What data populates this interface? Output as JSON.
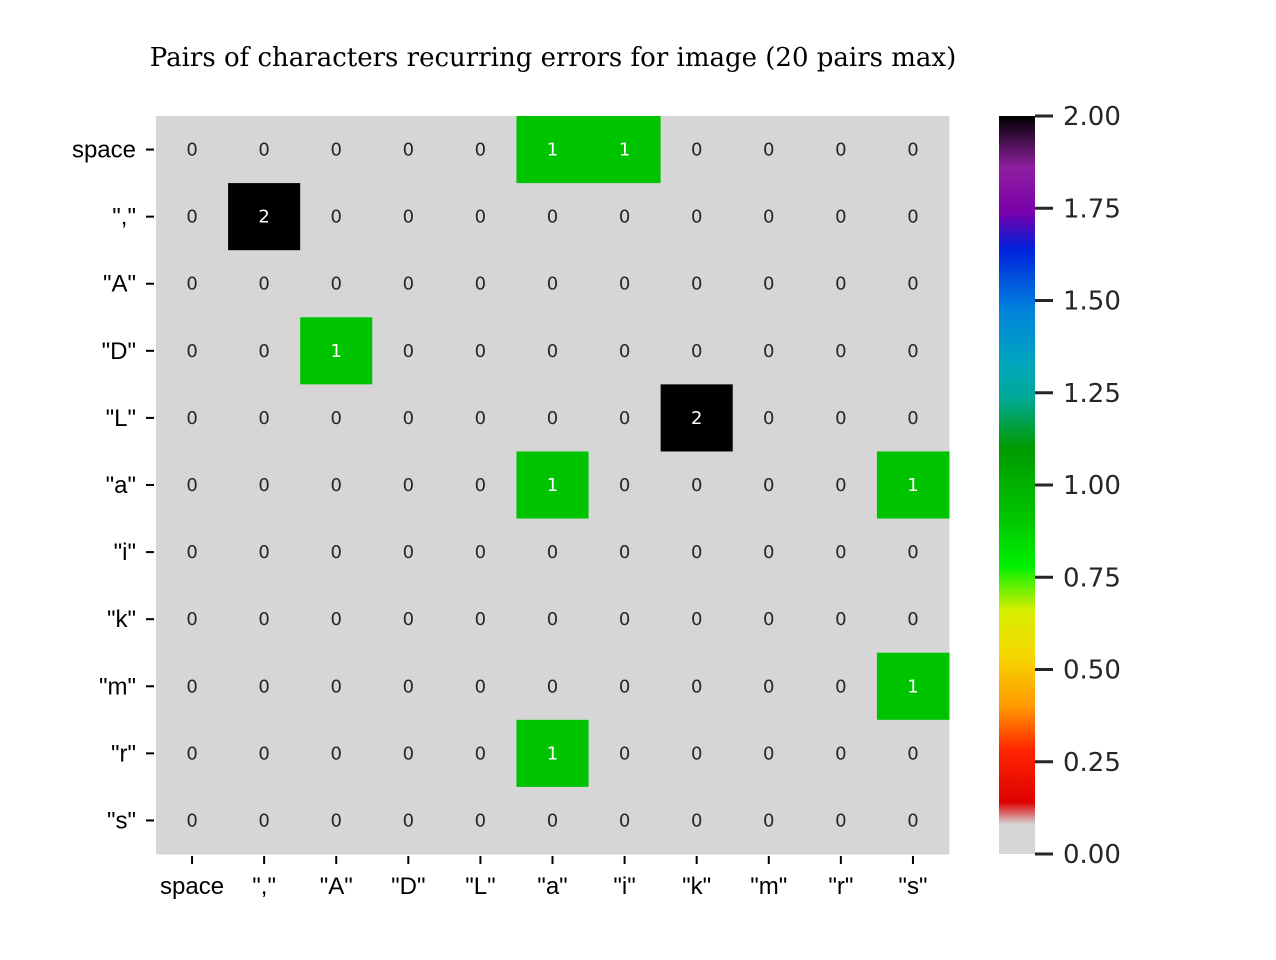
{
  "chart_data": {
    "type": "heatmap",
    "title": "Pairs of characters recurring errors for image (20 pairs max)",
    "xlabel": "",
    "ylabel": "",
    "x_categories": [
      "space",
      "\",\"",
      "\"A\"",
      "\"D\"",
      "\"L\"",
      "\"a\"",
      "\"i\"",
      "\"k\"",
      "\"m\"",
      "\"r\"",
      "\"s\""
    ],
    "y_categories": [
      "space",
      "\",\"",
      "\"A\"",
      "\"D\"",
      "\"L\"",
      "\"a\"",
      "\"i\"",
      "\"k\"",
      "\"m\"",
      "\"r\"",
      "\"s\""
    ],
    "values": [
      [
        0,
        0,
        0,
        0,
        0,
        1,
        1,
        0,
        0,
        0,
        0
      ],
      [
        0,
        2,
        0,
        0,
        0,
        0,
        0,
        0,
        0,
        0,
        0
      ],
      [
        0,
        0,
        0,
        0,
        0,
        0,
        0,
        0,
        0,
        0,
        0
      ],
      [
        0,
        0,
        1,
        0,
        0,
        0,
        0,
        0,
        0,
        0,
        0
      ],
      [
        0,
        0,
        0,
        0,
        0,
        0,
        0,
        2,
        0,
        0,
        0
      ],
      [
        0,
        0,
        0,
        0,
        0,
        1,
        0,
        0,
        0,
        0,
        1
      ],
      [
        0,
        0,
        0,
        0,
        0,
        0,
        0,
        0,
        0,
        0,
        0
      ],
      [
        0,
        0,
        0,
        0,
        0,
        0,
        0,
        0,
        0,
        0,
        0
      ],
      [
        0,
        0,
        0,
        0,
        0,
        0,
        0,
        0,
        0,
        0,
        1
      ],
      [
        0,
        0,
        0,
        0,
        0,
        1,
        0,
        0,
        0,
        0,
        0
      ],
      [
        0,
        0,
        0,
        0,
        0,
        0,
        0,
        0,
        0,
        0,
        0
      ]
    ],
    "value_range": [
      0,
      2
    ],
    "annotations": true,
    "colorbar": {
      "ticks": [
        0.0,
        0.25,
        0.5,
        0.75,
        1.0,
        1.25,
        1.5,
        1.75,
        2.0
      ],
      "tick_labels": [
        "0.00",
        "0.25",
        "0.50",
        "0.75",
        "1.00",
        "1.25",
        "1.50",
        "1.75",
        "2.00"
      ],
      "placement": "right",
      "colormap": "nipy_spectral_r"
    },
    "colors": {
      "zero": "#d6d6d6",
      "one": "#00c300",
      "two": "#000000"
    },
    "grid": false
  }
}
